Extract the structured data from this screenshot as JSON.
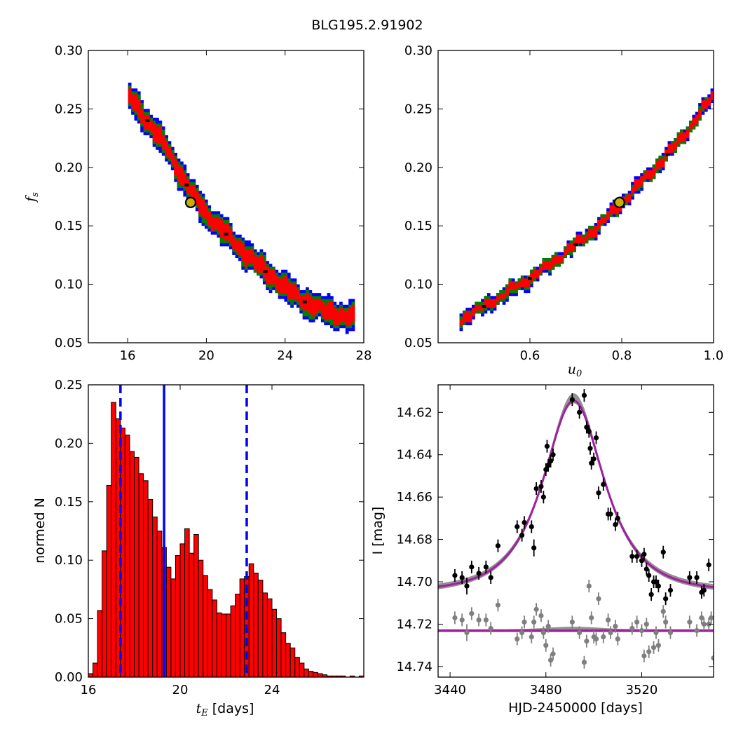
{
  "title": "BLG195.2.91902",
  "colors": {
    "red": "#ff0000",
    "green": "#007f00",
    "blue": "#0000ff",
    "black": "#000000",
    "gray": "#7f7f7f",
    "purple": "#a020a0",
    "marker": "#c8b000"
  },
  "chart_data": [
    {
      "id": "fs-vs-tE",
      "type": "heatmap",
      "xlim": [
        14,
        28
      ],
      "ylim": [
        0.05,
        0.3
      ],
      "xticks": [
        "16",
        "20",
        "24",
        "28"
      ],
      "yticks": [
        "0.05",
        "0.10",
        "0.15",
        "0.20",
        "0.25",
        "0.30"
      ],
      "ylabel": "f",
      "ylabel_sub": "s",
      "best_fit": {
        "x": 19.2,
        "y": 0.17
      },
      "ridge": [
        [
          16.0,
          0.262
        ],
        [
          17.0,
          0.24
        ],
        [
          18.0,
          0.215
        ],
        [
          19.0,
          0.185
        ],
        [
          20.0,
          0.16
        ],
        [
          21.0,
          0.143
        ],
        [
          22.0,
          0.126
        ],
        [
          23.0,
          0.111
        ],
        [
          24.0,
          0.097
        ],
        [
          25.0,
          0.085
        ],
        [
          26.0,
          0.077
        ],
        [
          27.5,
          0.071
        ]
      ]
    },
    {
      "id": "fs-vs-u0",
      "type": "heatmap",
      "xlim": [
        0.4,
        1.0
      ],
      "ylim": [
        0.05,
        0.3
      ],
      "xticks": [
        "0.6",
        "0.8",
        "1.0"
      ],
      "yticks": [
        "0.05",
        "0.10",
        "0.15",
        "0.20",
        "0.25",
        "0.30"
      ],
      "xlabel": "u",
      "xlabel_sub": "0",
      "best_fit": {
        "x": 0.795,
        "y": 0.17
      },
      "ridge": [
        [
          0.45,
          0.07
        ],
        [
          0.5,
          0.081
        ],
        [
          0.55,
          0.093
        ],
        [
          0.6,
          0.105
        ],
        [
          0.65,
          0.119
        ],
        [
          0.7,
          0.134
        ],
        [
          0.75,
          0.15
        ],
        [
          0.8,
          0.17
        ],
        [
          0.85,
          0.19
        ],
        [
          0.9,
          0.211
        ],
        [
          0.95,
          0.235
        ],
        [
          1.0,
          0.262
        ]
      ]
    },
    {
      "id": "tE-histogram",
      "type": "bar",
      "xlim": [
        16,
        28
      ],
      "ylim": [
        0.0,
        0.25
      ],
      "xticks": [
        "16",
        "20",
        "24"
      ],
      "yticks": [
        "0.00",
        "0.05",
        "0.10",
        "0.15",
        "0.20",
        "0.25"
      ],
      "xlabel": "t",
      "xlabel_sub": "E",
      "xlabel_suffix": " [days]",
      "ylabel": "normed N",
      "bin_start": 16.0,
      "bin_width": 0.2,
      "values": [
        0.003,
        0.012,
        0.057,
        0.108,
        0.164,
        0.235,
        0.221,
        0.213,
        0.207,
        0.193,
        0.188,
        0.174,
        0.168,
        0.152,
        0.137,
        0.125,
        0.111,
        0.094,
        0.084,
        0.104,
        0.114,
        0.127,
        0.106,
        0.122,
        0.1,
        0.087,
        0.075,
        0.066,
        0.055,
        0.054,
        0.054,
        0.061,
        0.071,
        0.084,
        0.086,
        0.097,
        0.089,
        0.083,
        0.072,
        0.067,
        0.058,
        0.05,
        0.038,
        0.029,
        0.025,
        0.017,
        0.012,
        0.007,
        0.005,
        0.004,
        0.003,
        0.002,
        0.001,
        0.001,
        0.001,
        0.001,
        0.0,
        0.001,
        0.0,
        0.001
      ],
      "median": 19.3,
      "bounds": [
        17.4,
        22.9
      ]
    },
    {
      "id": "light-curve",
      "type": "scatter",
      "xlim": [
        3435,
        3550
      ],
      "ylim": [
        14.745,
        14.607
      ],
      "xticks": [
        "3440",
        "3480",
        "3520"
      ],
      "yticks": [
        "14.62",
        "14.64",
        "14.66",
        "14.68",
        "14.70",
        "14.72",
        "14.74"
      ],
      "xlabel": "HJD-2450000 [days]",
      "ylabel": "I [mag]",
      "model": {
        "t0": 3491.6,
        "base": 14.705,
        "amp": 0.0905,
        "tE": 19.2,
        "u0": 0.795,
        "blend": 0.17
      },
      "residual_level": 14.723,
      "data": [
        [
          3442,
          14.697,
          0.003
        ],
        [
          3445,
          14.698,
          0.003
        ],
        [
          3447,
          14.702,
          0.004
        ],
        [
          3449,
          14.693,
          0.003
        ],
        [
          3452,
          14.696,
          0.003
        ],
        [
          3455,
          14.693,
          0.003
        ],
        [
          3457,
          14.698,
          0.003
        ],
        [
          3460,
          14.683,
          0.003
        ],
        [
          3468,
          14.674,
          0.003
        ],
        [
          3470,
          14.678,
          0.003
        ],
        [
          3471,
          14.672,
          0.003
        ],
        [
          3474,
          14.674,
          0.003
        ],
        [
          3475,
          14.684,
          0.004
        ],
        [
          3476,
          14.656,
          0.003
        ],
        [
          3478,
          14.655,
          0.003
        ],
        [
          3479,
          14.66,
          0.003
        ],
        [
          3480,
          14.647,
          0.003
        ],
        [
          3480.5,
          14.636,
          0.003
        ],
        [
          3481,
          14.645,
          0.003
        ],
        [
          3482,
          14.643,
          0.003
        ],
        [
          3483,
          14.64,
          0.003
        ],
        [
          3491,
          14.614,
          0.003
        ],
        [
          3494,
          14.62,
          0.003
        ],
        [
          3496,
          14.612,
          0.003
        ],
        [
          3497,
          14.627,
          0.003
        ],
        [
          3498,
          14.629,
          0.003
        ],
        [
          3498.5,
          14.637,
          0.003
        ],
        [
          3499,
          14.644,
          0.003
        ],
        [
          3500,
          14.642,
          0.003
        ],
        [
          3501,
          14.632,
          0.003
        ],
        [
          3502,
          14.658,
          0.003
        ],
        [
          3504,
          14.654,
          0.003
        ],
        [
          3506,
          14.668,
          0.003
        ],
        [
          3507,
          14.668,
          0.003
        ],
        [
          3509,
          14.673,
          0.003
        ],
        [
          3510,
          14.67,
          0.003
        ],
        [
          3516,
          14.688,
          0.003
        ],
        [
          3518,
          14.688,
          0.003
        ],
        [
          3520,
          14.69,
          0.003
        ],
        [
          3521,
          14.687,
          0.003
        ],
        [
          3522,
          14.694,
          0.003
        ],
        [
          3523,
          14.697,
          0.003
        ],
        [
          3524,
          14.706,
          0.003
        ],
        [
          3525,
          14.7,
          0.003
        ],
        [
          3526,
          14.7,
          0.003
        ],
        [
          3527,
          14.702,
          0.003
        ],
        [
          3529,
          14.686,
          0.003
        ],
        [
          3530,
          14.708,
          0.003
        ],
        [
          3532,
          14.704,
          0.003
        ],
        [
          3540,
          14.698,
          0.003
        ],
        [
          3543,
          14.698,
          0.003
        ],
        [
          3545,
          14.705,
          0.003
        ],
        [
          3546,
          14.704,
          0.003
        ],
        [
          3548,
          14.692,
          0.003
        ]
      ],
      "residuals": [
        [
          3442,
          14.717,
          0.003
        ],
        [
          3445,
          14.718,
          0.003
        ],
        [
          3447,
          14.724,
          0.004
        ],
        [
          3449,
          14.715,
          0.003
        ],
        [
          3452,
          14.718,
          0.003
        ],
        [
          3455,
          14.718,
          0.003
        ],
        [
          3457,
          14.722,
          0.003
        ],
        [
          3460,
          14.711,
          0.003
        ],
        [
          3468,
          14.727,
          0.003
        ],
        [
          3470,
          14.724,
          0.003
        ],
        [
          3471,
          14.719,
          0.003
        ],
        [
          3474,
          14.726,
          0.003
        ],
        [
          3475,
          14.719,
          0.003
        ],
        [
          3476,
          14.713,
          0.003
        ],
        [
          3478,
          14.716,
          0.003
        ],
        [
          3479,
          14.724,
          0.003
        ],
        [
          3480,
          14.73,
          0.003
        ],
        [
          3481,
          14.721,
          0.003
        ],
        [
          3482,
          14.737,
          0.003
        ],
        [
          3483,
          14.734,
          0.003
        ],
        [
          3491,
          14.719,
          0.003
        ],
        [
          3494,
          14.724,
          0.003
        ],
        [
          3496,
          14.738,
          0.003
        ],
        [
          3497,
          14.728,
          0.003
        ],
        [
          3498,
          14.702,
          0.003
        ],
        [
          3499,
          14.717,
          0.003
        ],
        [
          3500,
          14.726,
          0.003
        ],
        [
          3501,
          14.727,
          0.003
        ],
        [
          3502,
          14.708,
          0.003
        ],
        [
          3504,
          14.726,
          0.003
        ],
        [
          3506,
          14.718,
          0.003
        ],
        [
          3507,
          14.724,
          0.003
        ],
        [
          3509,
          14.721,
          0.003
        ],
        [
          3510,
          14.727,
          0.003
        ],
        [
          3516,
          14.722,
          0.003
        ],
        [
          3518,
          14.719,
          0.003
        ],
        [
          3520,
          14.723,
          0.003
        ],
        [
          3521,
          14.735,
          0.003
        ],
        [
          3522,
          14.72,
          0.003
        ],
        [
          3523,
          14.733,
          0.003
        ],
        [
          3525,
          14.731,
          0.003
        ],
        [
          3526,
          14.724,
          0.003
        ],
        [
          3527,
          14.73,
          0.003
        ],
        [
          3529,
          14.714,
          0.003
        ],
        [
          3530,
          14.719,
          0.003
        ],
        [
          3532,
          14.724,
          0.003
        ],
        [
          3540,
          14.719,
          0.003
        ],
        [
          3543,
          14.723,
          0.003
        ],
        [
          3545,
          14.717,
          0.003
        ],
        [
          3546,
          14.72,
          0.003
        ],
        [
          3548,
          14.72,
          0.003
        ],
        [
          3549,
          14.717,
          0.003
        ],
        [
          3550,
          14.736,
          0.003
        ]
      ]
    }
  ]
}
